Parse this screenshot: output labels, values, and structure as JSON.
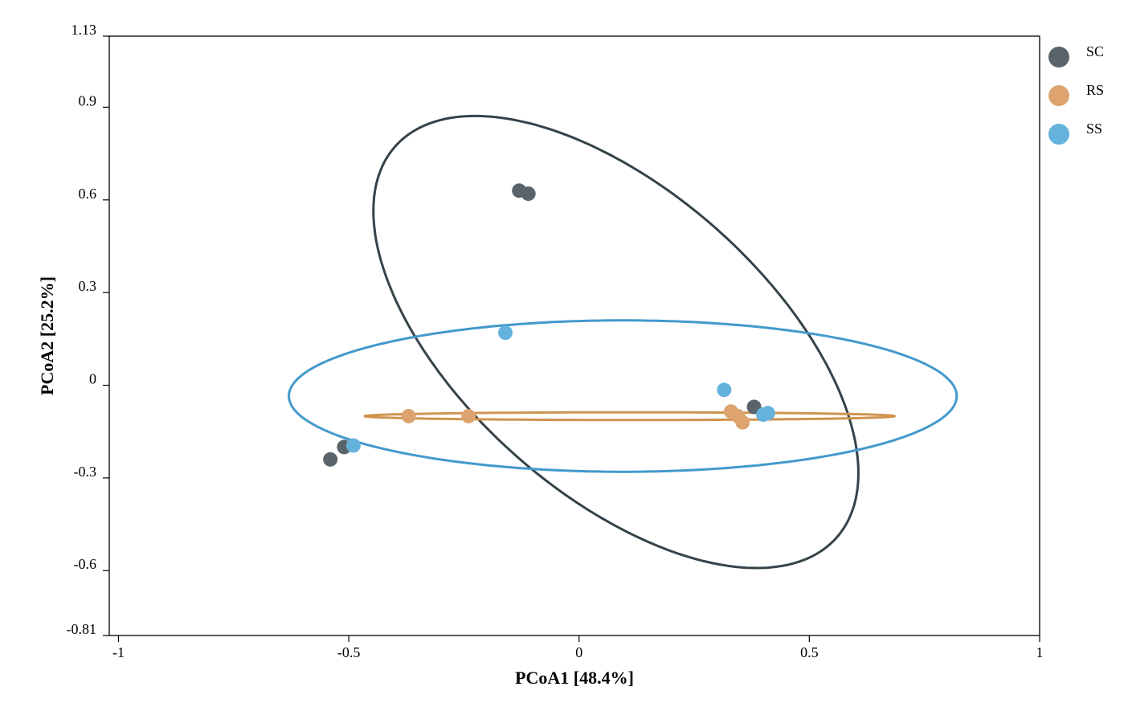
{
  "chart_data": {
    "type": "scatter",
    "title": "",
    "xlabel": "PCoA1 [48.4%]",
    "ylabel": "PCoA2 [25.2%]",
    "xlim": [
      -1.02,
      1
    ],
    "ylim": [
      -0.81,
      1.13
    ],
    "xticks": [
      -1,
      -0.5,
      0,
      0.5,
      1
    ],
    "xtick_labels": [
      "-1",
      "-0.5",
      "0",
      "0.5",
      "1"
    ],
    "yticks": [
      1.13,
      0.9,
      0.6,
      0.3,
      0,
      -0.3,
      -0.6,
      -0.81
    ],
    "ytick_labels": [
      "1.13",
      "0.9",
      "0.6",
      "0.3",
      "0",
      "-0.3",
      "-0.6",
      "-0.81"
    ],
    "legend_position": "right",
    "series": [
      {
        "name": "SC",
        "color": "#58646a",
        "ellipse_color": "#35434a",
        "points": [
          [
            -0.13,
            0.63
          ],
          [
            -0.11,
            0.62
          ],
          [
            -0.51,
            -0.2
          ],
          [
            -0.54,
            -0.24
          ],
          [
            0.38,
            -0.07
          ]
        ],
        "ellipse": {
          "cx": 0.08,
          "cy": 0.14,
          "rx": 0.815,
          "ry": 0.385,
          "angle_deg": -60
        }
      },
      {
        "name": "RS",
        "color": "#dea470",
        "ellipse_color": "#d0934e",
        "points": [
          [
            -0.37,
            -0.1
          ],
          [
            -0.24,
            -0.1
          ],
          [
            0.33,
            -0.085
          ],
          [
            0.345,
            -0.1
          ],
          [
            0.355,
            -0.12
          ]
        ],
        "ellipse": {
          "cx": 0.11,
          "cy": -0.1,
          "rx": 0.575,
          "ry": 0.0124,
          "angle_deg": 0
        }
      },
      {
        "name": "SS",
        "color": "#65b2dd",
        "ellipse_color": "#4399cc",
        "points": [
          [
            -0.16,
            0.17
          ],
          [
            -0.49,
            -0.195
          ],
          [
            0.315,
            -0.015
          ],
          [
            0.4,
            -0.095
          ],
          [
            0.41,
            -0.09
          ]
        ],
        "ellipse": {
          "cx": 0.095,
          "cy": -0.035,
          "rx": 0.725,
          "ry": 0.245,
          "angle_deg": 0
        }
      }
    ]
  }
}
